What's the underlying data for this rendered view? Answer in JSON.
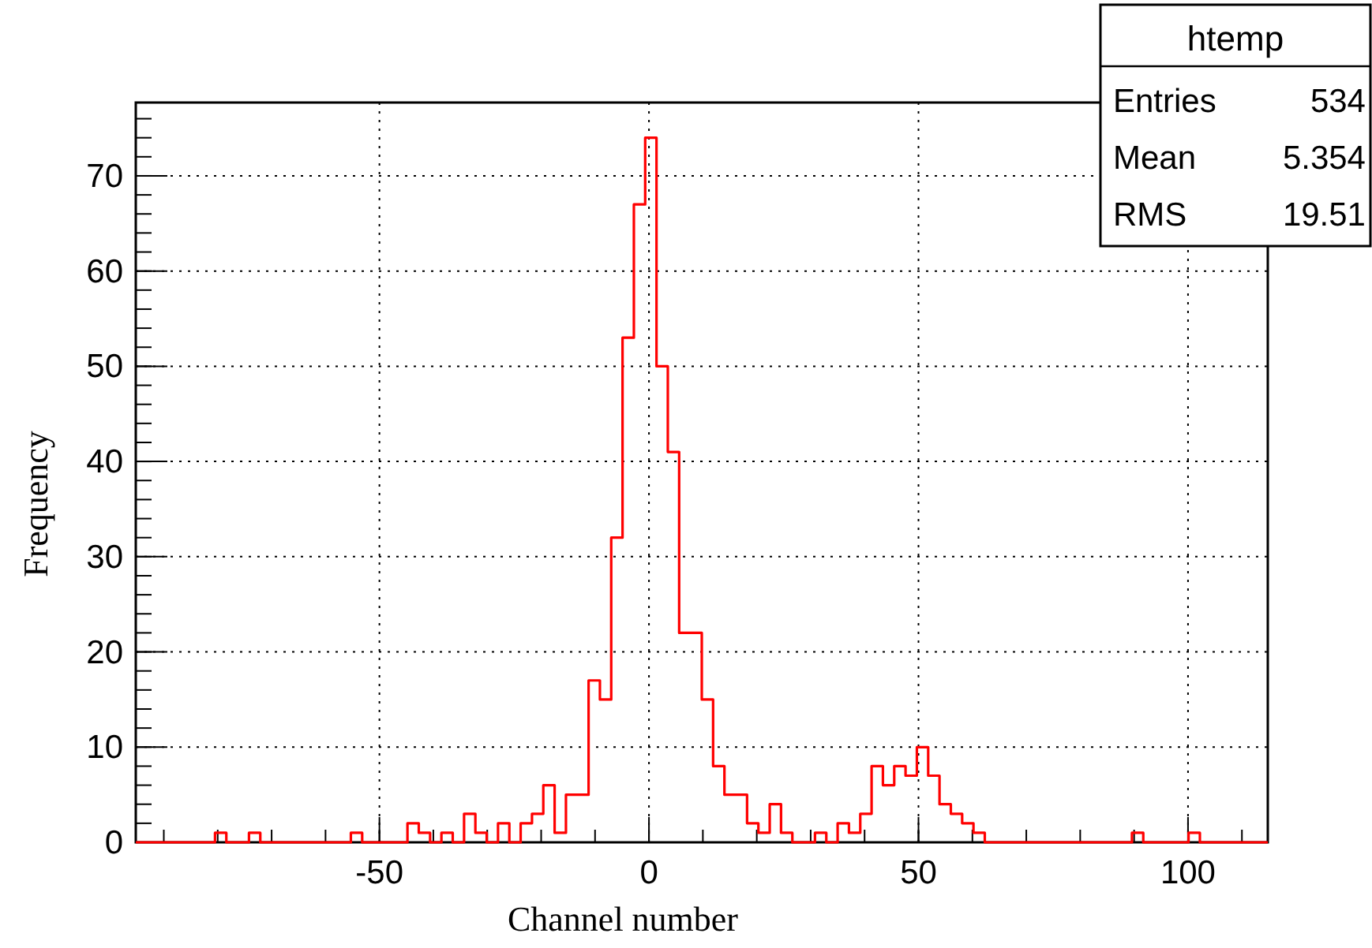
{
  "chart_data": {
    "type": "histogram",
    "xlabel": "Channel number",
    "ylabel": "Frequency",
    "bins": [
      -95.2,
      -93.1,
      -91,
      -88.9,
      -86.8,
      -84.7,
      -82.6,
      -80.5,
      -78.4,
      -76.3,
      -74.2,
      -72.1,
      -70,
      -67.9,
      -65.8,
      -63.7,
      -61.6,
      -59.5,
      -57.4,
      -55.3,
      -53.2,
      -51.1,
      -49,
      -46.9,
      -44.8,
      -42.7,
      -40.6,
      -38.5,
      -36.4,
      -34.3,
      -32.2,
      -30.1,
      -28,
      -25.9,
      -23.8,
      -21.7,
      -19.6,
      -17.5,
      -15.4,
      -13.3,
      -11.2,
      -9.1,
      -7,
      -4.9,
      -2.8,
      -0.7,
      1.4,
      3.5,
      5.6,
      7.7,
      9.8,
      11.9,
      14,
      16.1,
      18.2,
      20.3,
      22.4,
      24.5,
      26.6,
      28.7,
      30.8,
      32.9,
      35,
      37.1,
      39.2,
      41.3,
      43.4,
      45.5,
      47.6,
      49.7,
      51.8,
      53.9,
      56,
      58.1,
      60.2,
      62.3,
      64.4,
      66.5,
      68.6,
      70.7,
      72.8,
      74.9,
      77,
      79.1,
      81.2,
      83.3,
      85.4,
      87.5,
      89.6,
      91.7,
      93.8,
      95.9,
      98,
      100.1,
      102.2,
      104.3,
      106.4,
      108.5,
      110.6,
      112.7,
      114.8
    ],
    "values": [
      0,
      0,
      0,
      0,
      0,
      0,
      0,
      1,
      0,
      0,
      1,
      0,
      0,
      0,
      0,
      0,
      0,
      0,
      0,
      1,
      0,
      0,
      0,
      0,
      2,
      1,
      0,
      1,
      0,
      3,
      1,
      0,
      2,
      0,
      2,
      3,
      6,
      1,
      5,
      5,
      17,
      15,
      32,
      53,
      67,
      74,
      50,
      41,
      22,
      22,
      15,
      8,
      5,
      5,
      2,
      1,
      4,
      1,
      0,
      0,
      1,
      0,
      2,
      1,
      3,
      8,
      6,
      8,
      7,
      10,
      7,
      4,
      3,
      2,
      1,
      0,
      0,
      0,
      0,
      0,
      0,
      0,
      0,
      0,
      0,
      0,
      0,
      0,
      1,
      0,
      0,
      0,
      0,
      1,
      0,
      0,
      0,
      0,
      0,
      0
    ],
    "color": "#ff0000",
    "xlim": [
      -95.2,
      114.8
    ],
    "ylim": [
      0,
      77.7
    ],
    "xticks": [
      -50,
      0,
      50,
      100
    ],
    "yticks": [
      0,
      10,
      20,
      30,
      40,
      50,
      60,
      70
    ],
    "grid": true,
    "annotations": [
      "htemp",
      "Entries 534",
      "Mean 5.354",
      "RMS 19.51"
    ]
  }
}
